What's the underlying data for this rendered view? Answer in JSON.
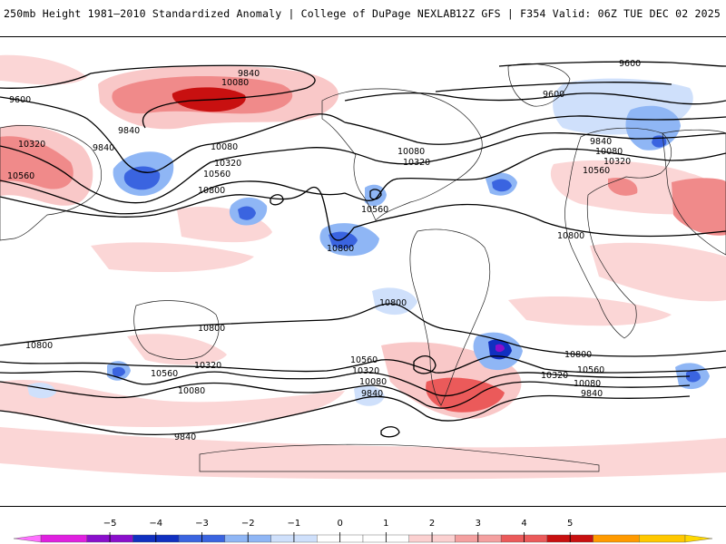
{
  "header": {
    "title": "250mb Height 1981–2010 Standardized Anomaly | College of DuPage NEXLAB",
    "run_info": "12Z GFS | F354 Valid: 06Z TUE DEC 02 2025"
  },
  "map": {
    "contour_labels": [
      {
        "id": "l-9840-npac-top",
        "text": "9840"
      },
      {
        "id": "l-10080-npac-top",
        "text": "10080"
      },
      {
        "id": "l-9600-nwpac",
        "text": "9600"
      },
      {
        "id": "l-9840-npac-low",
        "text": "9840"
      },
      {
        "id": "l-10320-asia",
        "text": "10320"
      },
      {
        "id": "l-9840-kamchatka",
        "text": "9840"
      },
      {
        "id": "l-10080-npac-mid",
        "text": "10080"
      },
      {
        "id": "l-10560-asia",
        "text": "10560"
      },
      {
        "id": "l-10320-npac-mid",
        "text": "10320"
      },
      {
        "id": "l-10560-npac-mid",
        "text": "10560"
      },
      {
        "id": "l-10800-npac-mid",
        "text": "10800"
      },
      {
        "id": "l-10080-us",
        "text": "10080"
      },
      {
        "id": "l-10320-us",
        "text": "10320"
      },
      {
        "id": "l-10560-mexico",
        "text": "10560"
      },
      {
        "id": "l-10800-epac",
        "text": "10800"
      },
      {
        "id": "l-9600-atl-top",
        "text": "9600"
      },
      {
        "id": "l-9600-atl",
        "text": "9600"
      },
      {
        "id": "l-9840-eur",
        "text": "9840"
      },
      {
        "id": "l-10080-eur",
        "text": "10080"
      },
      {
        "id": "l-10320-eur",
        "text": "10320"
      },
      {
        "id": "l-10560-eur",
        "text": "10560"
      },
      {
        "id": "l-10800-africa",
        "text": "10800"
      },
      {
        "id": "l-10800-spac",
        "text": "10800"
      },
      {
        "id": "l-10800-sh-w",
        "text": "10800"
      },
      {
        "id": "l-10800-sh-mid",
        "text": "10800"
      },
      {
        "id": "l-10560-aus",
        "text": "10560"
      },
      {
        "id": "l-10320-aus",
        "text": "10320"
      },
      {
        "id": "l-10080-aus",
        "text": "10080"
      },
      {
        "id": "l-10560-spac",
        "text": "10560"
      },
      {
        "id": "l-10320-spac",
        "text": "10320"
      },
      {
        "id": "l-10080-spac",
        "text": "10080"
      },
      {
        "id": "l-9840-spac",
        "text": "9840"
      },
      {
        "id": "l-9840-sh-w",
        "text": "9840"
      },
      {
        "id": "l-10800-satl",
        "text": "10800"
      },
      {
        "id": "l-10560-satl",
        "text": "10560"
      },
      {
        "id": "l-10320-satl",
        "text": "10320"
      },
      {
        "id": "l-10080-satl",
        "text": "10080"
      },
      {
        "id": "l-9840-satl",
        "text": "9840"
      }
    ]
  },
  "colorbar": {
    "ticks": [
      "−5",
      "−4",
      "−3",
      "−2",
      "−1",
      "0",
      "1",
      "2",
      "3",
      "4",
      "5"
    ],
    "colors": [
      "#e020e0",
      "#8a0fcc",
      "#1030c0",
      "#3a64e0",
      "#8fb6f5",
      "#cfe0fb",
      "#ffffff",
      "#ffffff",
      "#fbd0d0",
      "#f4a0a0",
      "#eb5a5a",
      "#c81010",
      "#ff9a00",
      "#ffc800"
    ]
  }
}
